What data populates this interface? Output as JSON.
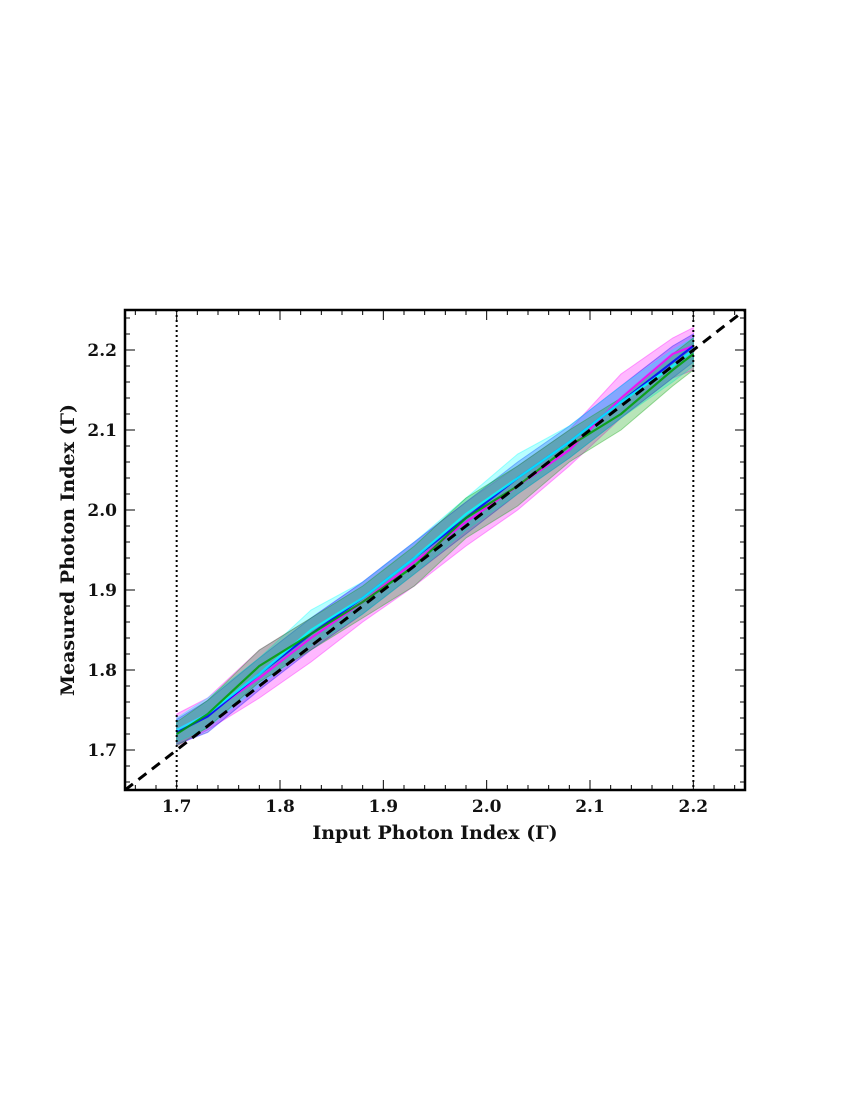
{
  "chart_data": {
    "type": "line",
    "title": "",
    "xlabel": "Input Photon Index (Γ)",
    "ylabel": "Measured Photon Index (Γ)",
    "xlim": [
      1.65,
      2.25
    ],
    "ylim": [
      1.65,
      2.25
    ],
    "xticks": [
      "1.7",
      "1.8",
      "1.9",
      "2.0",
      "2.1",
      "2.2"
    ],
    "yticks": [
      "1.7",
      "1.8",
      "1.9",
      "2.0",
      "2.1",
      "2.2"
    ],
    "grid": false,
    "legend": false,
    "vertical_lines": [
      1.7,
      2.2
    ],
    "reference_line": {
      "style": "dashed",
      "color": "#000000",
      "x": [
        1.65,
        2.25
      ],
      "y": [
        1.65,
        2.25
      ]
    },
    "series": [
      {
        "color": "#ff00ff",
        "x": [
          1.7,
          1.73,
          1.78,
          1.83,
          1.88,
          1.93,
          1.98,
          2.03,
          2.08,
          2.13,
          2.18,
          2.2
        ],
        "y": [
          1.725,
          1.745,
          1.79,
          1.84,
          1.885,
          1.935,
          1.985,
          2.03,
          2.075,
          2.14,
          2.195,
          2.205
        ],
        "lower": [
          1.705,
          1.725,
          1.765,
          1.81,
          1.86,
          1.905,
          1.955,
          2.0,
          2.055,
          2.115,
          2.165,
          2.175
        ],
        "upper": [
          1.745,
          1.765,
          1.825,
          1.865,
          1.91,
          1.96,
          2.01,
          2.055,
          2.1,
          2.17,
          2.215,
          2.228
        ]
      },
      {
        "color": "#0000ff",
        "x": [
          1.7,
          1.73,
          1.78,
          1.83,
          1.88,
          1.93,
          1.98,
          2.03,
          2.08,
          2.13,
          2.18,
          2.2
        ],
        "y": [
          1.722,
          1.742,
          1.795,
          1.845,
          1.89,
          1.94,
          1.99,
          2.04,
          2.085,
          2.135,
          2.185,
          2.205
        ],
        "lower": [
          1.707,
          1.722,
          1.775,
          1.825,
          1.87,
          1.92,
          1.97,
          2.02,
          2.065,
          2.115,
          2.165,
          2.185
        ],
        "upper": [
          1.738,
          1.762,
          1.815,
          1.865,
          1.91,
          1.96,
          2.01,
          2.06,
          2.105,
          2.155,
          2.205,
          2.22
        ]
      },
      {
        "color": "#00ffff",
        "x": [
          1.7,
          1.73,
          1.78,
          1.83,
          1.88,
          1.93,
          1.98,
          2.03,
          2.08,
          2.13,
          2.18,
          2.2
        ],
        "y": [
          1.725,
          1.745,
          1.795,
          1.85,
          1.89,
          1.94,
          1.995,
          2.04,
          2.085,
          2.135,
          2.18,
          2.2
        ],
        "lower": [
          1.71,
          1.728,
          1.78,
          1.83,
          1.87,
          1.92,
          1.975,
          2.02,
          2.065,
          2.115,
          2.16,
          2.18
        ],
        "upper": [
          1.74,
          1.765,
          1.815,
          1.875,
          1.91,
          1.96,
          2.015,
          2.07,
          2.105,
          2.155,
          2.2,
          2.215
        ]
      },
      {
        "color": "#00a000",
        "x": [
          1.7,
          1.73,
          1.78,
          1.83,
          1.88,
          1.93,
          1.98,
          2.03,
          2.08,
          2.13,
          2.18,
          2.2
        ],
        "y": [
          1.72,
          1.745,
          1.805,
          1.845,
          1.885,
          1.93,
          1.99,
          2.03,
          2.08,
          2.12,
          2.175,
          2.195
        ],
        "lower": [
          1.705,
          1.728,
          1.785,
          1.825,
          1.865,
          1.905,
          1.965,
          2.005,
          2.06,
          2.1,
          2.155,
          2.175
        ],
        "upper": [
          1.735,
          1.762,
          1.825,
          1.865,
          1.905,
          1.955,
          2.015,
          2.055,
          2.1,
          2.14,
          2.195,
          2.215
        ]
      }
    ]
  }
}
